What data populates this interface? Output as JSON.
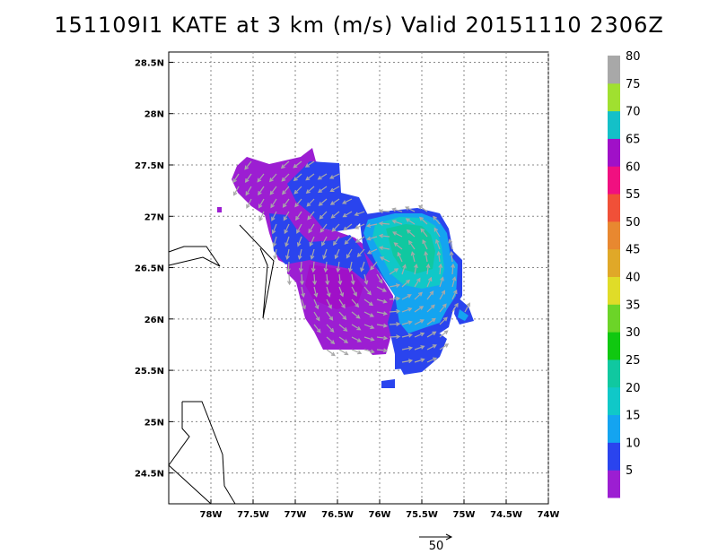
{
  "title": "151109I1  KATE at 3 km (m/s) Valid 20151110  2306Z",
  "map": {
    "lon_range": [
      -78.5,
      -74
    ],
    "lat_range": [
      24.2,
      28.6
    ],
    "lat_ticks": [
      {
        "value": 28.5,
        "label": "28.5N"
      },
      {
        "value": 28,
        "label": "28N"
      },
      {
        "value": 27.5,
        "label": "27.5N"
      },
      {
        "value": 27,
        "label": "27N"
      },
      {
        "value": 26.5,
        "label": "26.5N"
      },
      {
        "value": 26,
        "label": "26N"
      },
      {
        "value": 25.5,
        "label": "25.5N"
      },
      {
        "value": 25,
        "label": "25N"
      },
      {
        "value": 24.5,
        "label": "24.5N"
      }
    ],
    "lon_ticks": [
      {
        "value": -78,
        "label": "78W"
      },
      {
        "value": -77.5,
        "label": "77.5W"
      },
      {
        "value": -77,
        "label": "77W"
      },
      {
        "value": -76.5,
        "label": "76.5W"
      },
      {
        "value": -76,
        "label": "76W"
      },
      {
        "value": -75.5,
        "label": "75.5W"
      },
      {
        "value": -75,
        "label": "75W"
      },
      {
        "value": -74.5,
        "label": "74.5W"
      },
      {
        "value": -74,
        "label": "74W"
      }
    ],
    "grid": true
  },
  "colorbar": {
    "labels": [
      "5",
      "10",
      "15",
      "20",
      "25",
      "30",
      "35",
      "40",
      "45",
      "50",
      "55",
      "60",
      "65",
      "70",
      "75",
      "80"
    ],
    "colors": [
      "#9c1ed2",
      "#2a44ee",
      "#14a4f0",
      "#10c8c8",
      "#10c8a0",
      "#10c810",
      "#6cd428",
      "#e0dc28",
      "#e0a828",
      "#e88830",
      "#f05038",
      "#f01080",
      "#a010c8",
      "#14c0c8",
      "#a0e030",
      "#a8a8a8"
    ]
  },
  "reference_vector": {
    "label": "50"
  }
}
